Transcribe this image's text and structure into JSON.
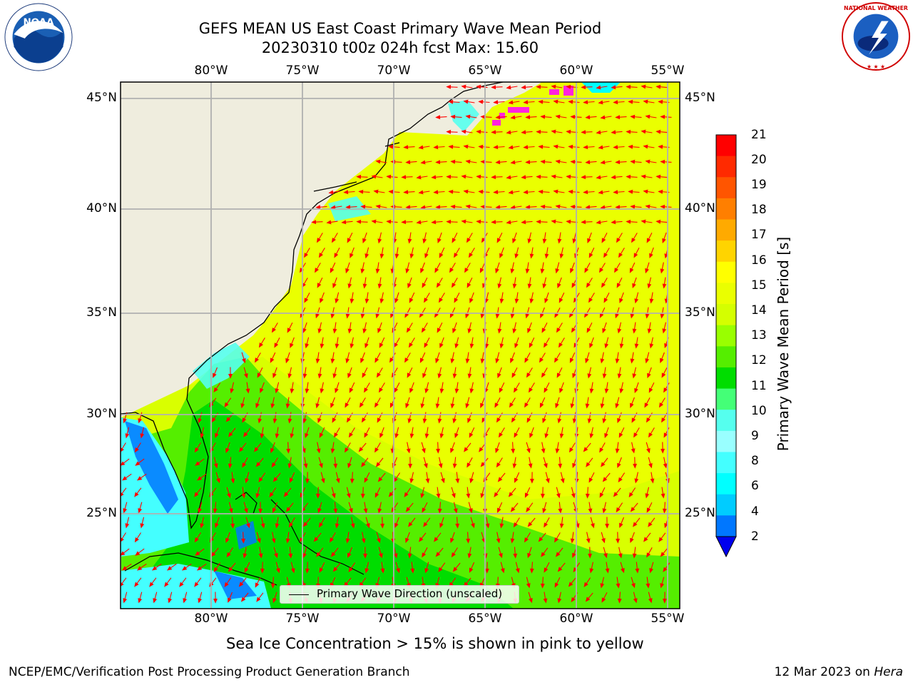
{
  "header": {
    "title_line1": "GEFS MEAN US East Coast Primary Wave Mean Period",
    "title_line2": "20230310 t00z 024h fcst   Max: 15.60"
  },
  "logos": {
    "left": "noaa-logo",
    "right": "national-weather-service-logo"
  },
  "map": {
    "projection": "plate-carree",
    "lon_range": [
      -85,
      -54.7
    ],
    "lat_range": [
      20.5,
      46
    ],
    "lon_tick_labels": [
      "80°W",
      "75°W",
      "70°W",
      "65°W",
      "60°W",
      "55°W"
    ],
    "lat_tick_labels": [
      "45°N",
      "40°N",
      "35°N",
      "30°N",
      "25°N"
    ],
    "land_color": "#efedde",
    "grid_color": "#b0b0b0",
    "arrow_color": "#ff0000",
    "field": "primary wave mean period",
    "max_value": 15.6
  },
  "legend": {
    "label": "Primary Wave Direction (unscaled)"
  },
  "colorbar": {
    "title": "Primary Wave Mean Period [s]",
    "tick_labels": [
      "21",
      "20",
      "19",
      "18",
      "17",
      "16",
      "15",
      "14",
      "13",
      "12",
      "11",
      "10",
      "9",
      "8",
      "6",
      "4",
      "2"
    ],
    "colors_top_to_bottom": [
      "#ff0000",
      "#ff2a00",
      "#ff5500",
      "#ff7f00",
      "#ffaa00",
      "#ffd400",
      "#ffff00",
      "#eaff00",
      "#d4ff00",
      "#99ff00",
      "#55ee00",
      "#00dd00",
      "#44ff77",
      "#55ffee",
      "#99ffff",
      "#44ffff",
      "#00ffff",
      "#00ccff",
      "#0077ff"
    ],
    "extend_min_color": "#0000ee"
  },
  "annotation": "Sea Ice Concentration > 15% is shown in pink to yellow",
  "footer": {
    "left": "NCEP/EMC/Verification Post Processing Product Generation Branch",
    "right_date": "12 Mar 2023 on ",
    "right_host": "Hera"
  }
}
